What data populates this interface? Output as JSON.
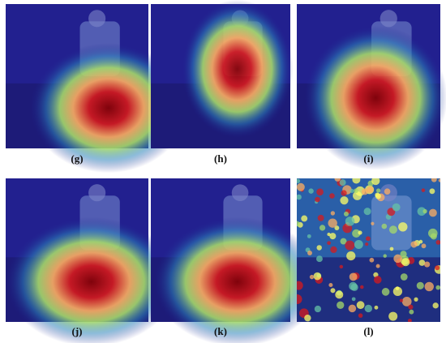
{
  "panels": [
    {
      "label": "(g)"
    },
    {
      "label": "(h)"
    },
    {
      "label": "(i)"
    },
    {
      "label": "(j)"
    },
    {
      "label": "(k)"
    },
    {
      "label": "(l)"
    }
  ]
}
